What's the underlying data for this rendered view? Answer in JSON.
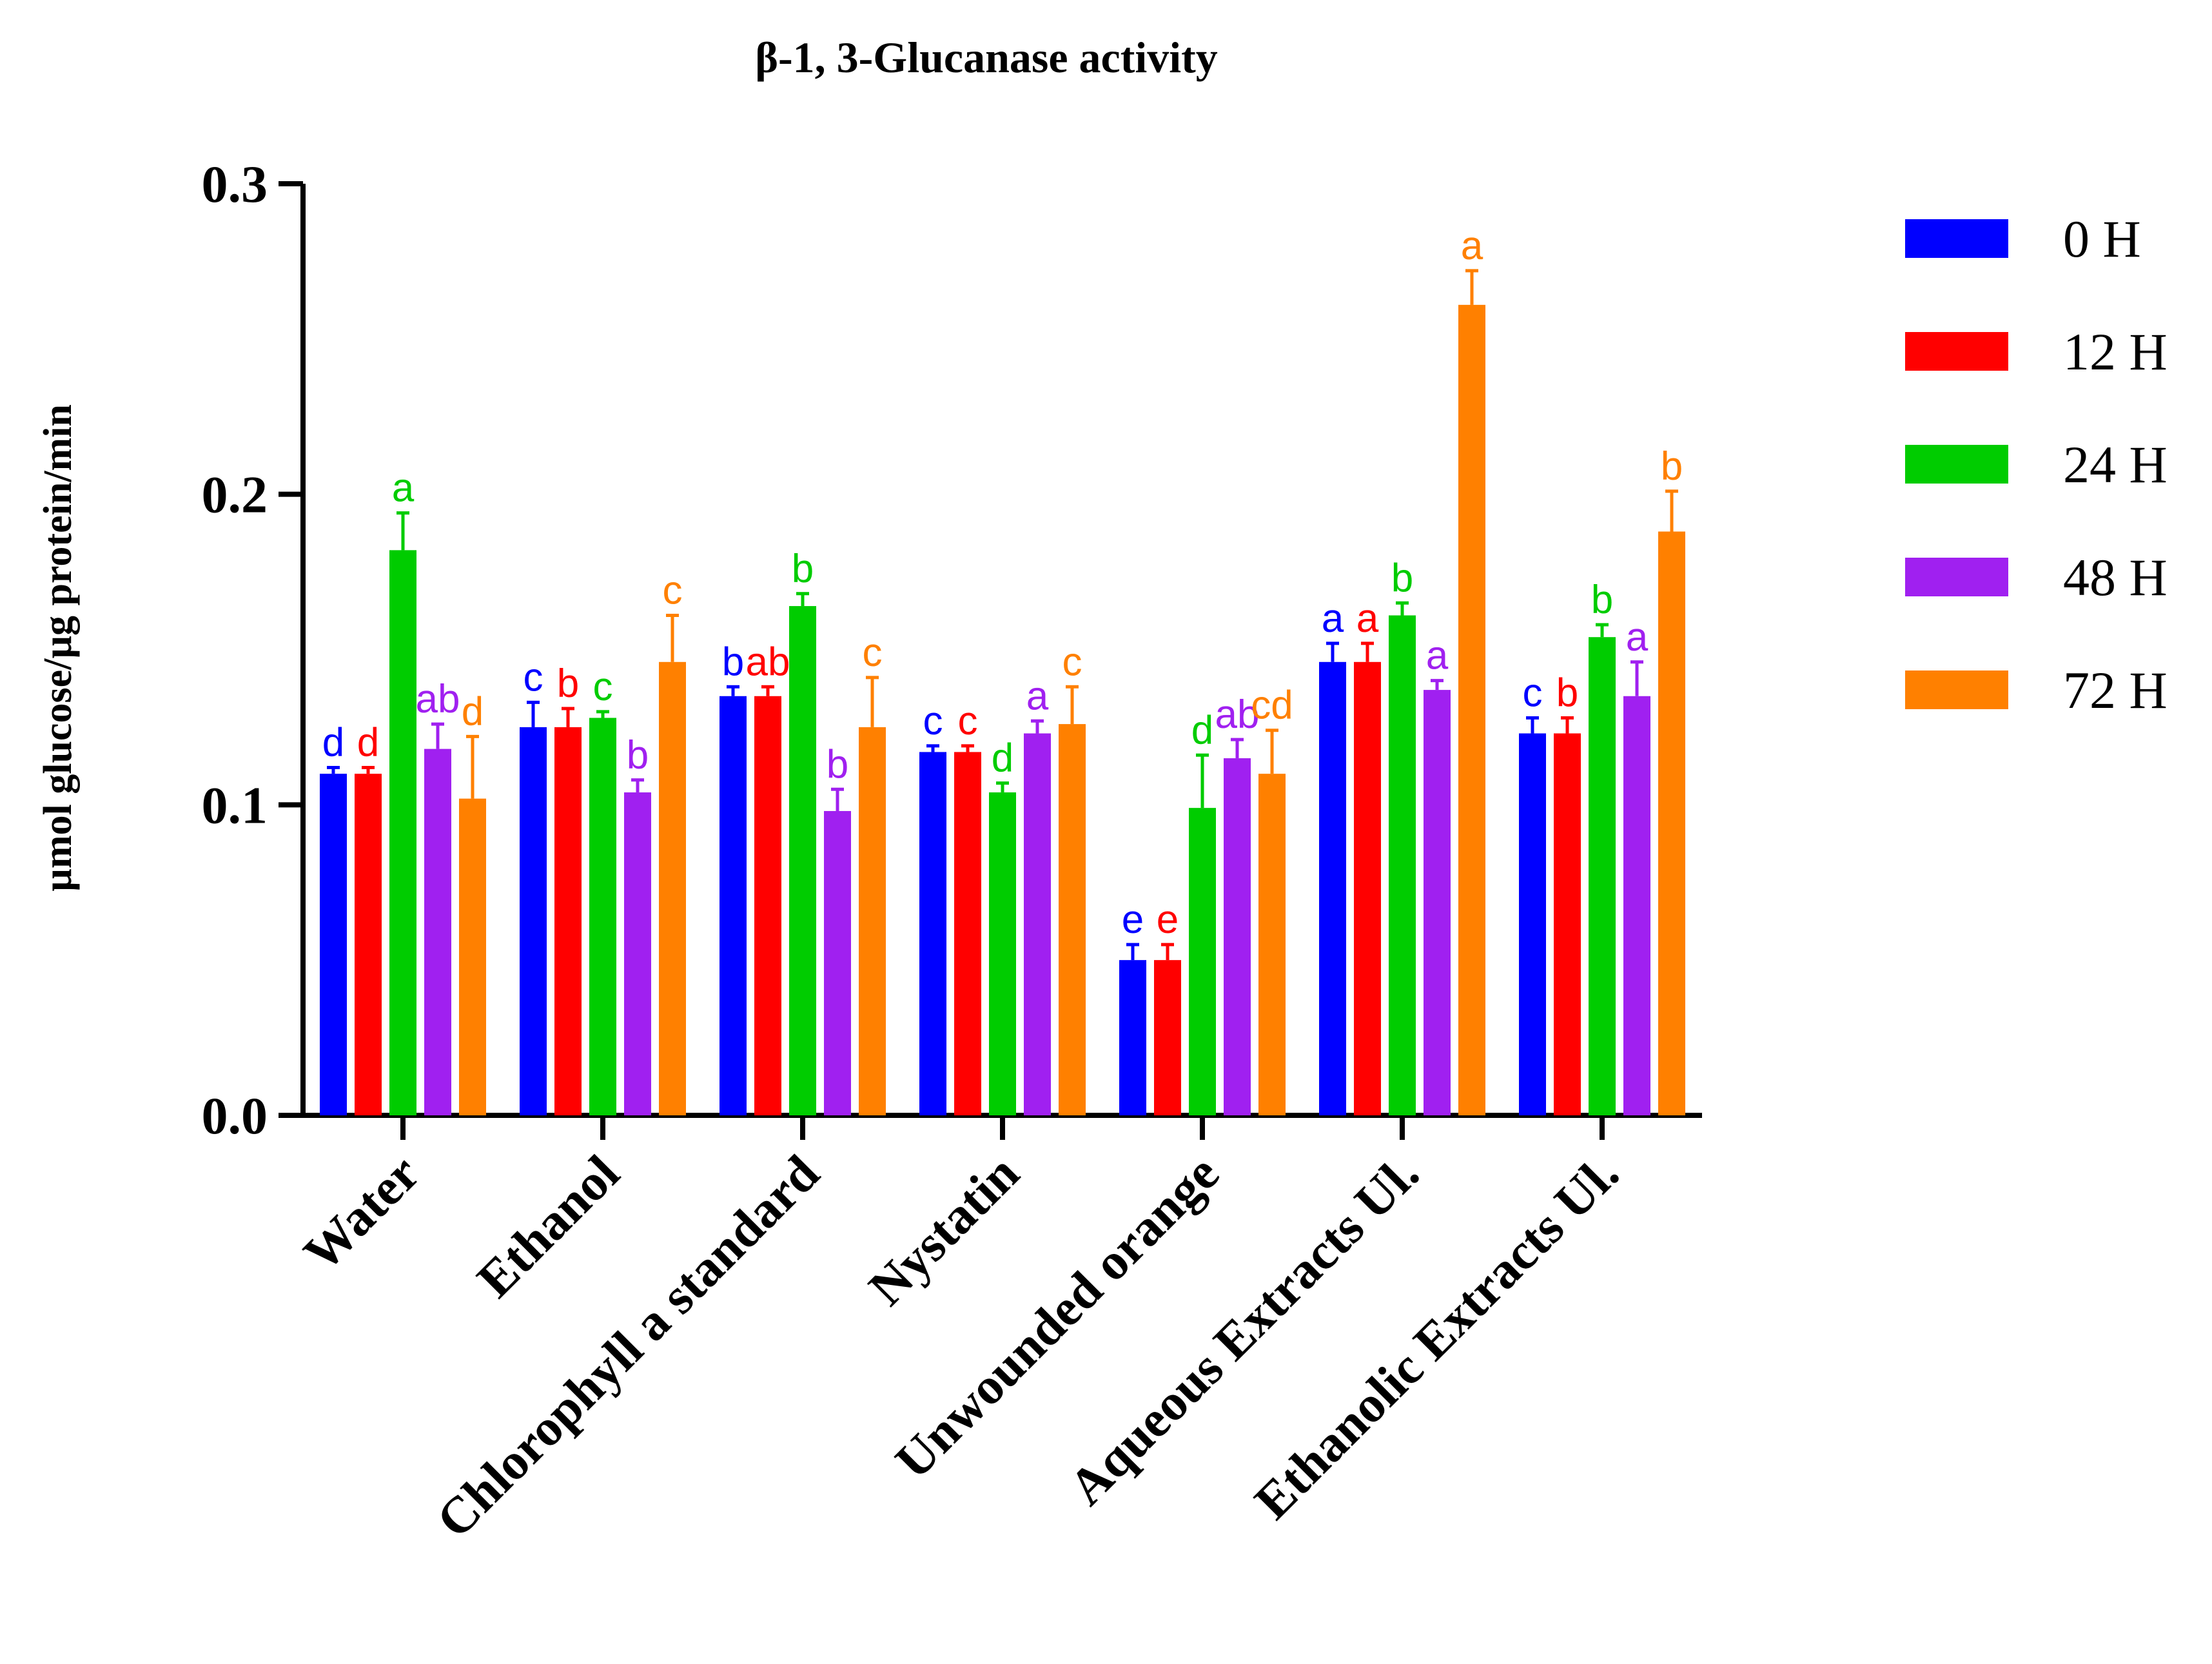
{
  "chart_data": {
    "type": "bar",
    "title": "β-1, 3-Glucanase activity",
    "ylabel": "µmol glucose/µg protein/min",
    "xlabel": "",
    "ylim": [
      0,
      0.3
    ],
    "yticks": [
      0.0,
      0.1,
      0.2,
      0.3
    ],
    "ytick_labels": [
      "0.0",
      "0.1",
      "0.2",
      "0.3"
    ],
    "legend_position": "top-right",
    "categories": [
      "Water",
      "Ethanol",
      "Chlorophyll a standard",
      "Nystatin",
      "Unwounded orange",
      "Aqueous Extracts Ul.",
      "Ethanolic Extracts Ul."
    ],
    "series": [
      {
        "name": "0 H",
        "color": "#0000ff",
        "values": [
          0.11,
          0.125,
          0.135,
          0.117,
          0.05,
          0.146,
          0.123
        ],
        "errors": [
          0.002,
          0.008,
          0.003,
          0.002,
          0.005,
          0.006,
          0.005
        ],
        "letters": [
          "d",
          "c",
          "b",
          "c",
          "e",
          "a",
          "c"
        ]
      },
      {
        "name": "12 H",
        "color": "#ff0000",
        "values": [
          0.11,
          0.125,
          0.135,
          0.117,
          0.05,
          0.146,
          0.123
        ],
        "errors": [
          0.002,
          0.006,
          0.003,
          0.002,
          0.005,
          0.006,
          0.005
        ],
        "letters": [
          "d",
          "b",
          "ab",
          "c",
          "e",
          "a",
          "b"
        ]
      },
      {
        "name": "24 H",
        "color": "#00cc00",
        "values": [
          0.182,
          0.128,
          0.164,
          0.104,
          0.099,
          0.161,
          0.154
        ],
        "errors": [
          0.012,
          0.002,
          0.004,
          0.003,
          0.017,
          0.004,
          0.004
        ],
        "letters": [
          "a",
          "c",
          "b",
          "d",
          "d",
          "b",
          "b"
        ]
      },
      {
        "name": "48 H",
        "color": "#a020f0",
        "values": [
          0.118,
          0.104,
          0.098,
          0.123,
          0.115,
          0.137,
          0.135
        ],
        "errors": [
          0.008,
          0.004,
          0.007,
          0.004,
          0.006,
          0.003,
          0.011
        ],
        "letters": [
          "ab",
          "b",
          "b",
          "a",
          "ab",
          "a",
          "a"
        ]
      },
      {
        "name": "72 H",
        "color": "#ff8000",
        "values": [
          0.102,
          0.146,
          0.125,
          0.126,
          0.11,
          0.261,
          0.188
        ],
        "errors": [
          0.02,
          0.015,
          0.016,
          0.012,
          0.014,
          0.011,
          0.013
        ],
        "letters": [
          "d",
          "c",
          "c",
          "c",
          "cd",
          "a",
          "b"
        ]
      }
    ]
  }
}
